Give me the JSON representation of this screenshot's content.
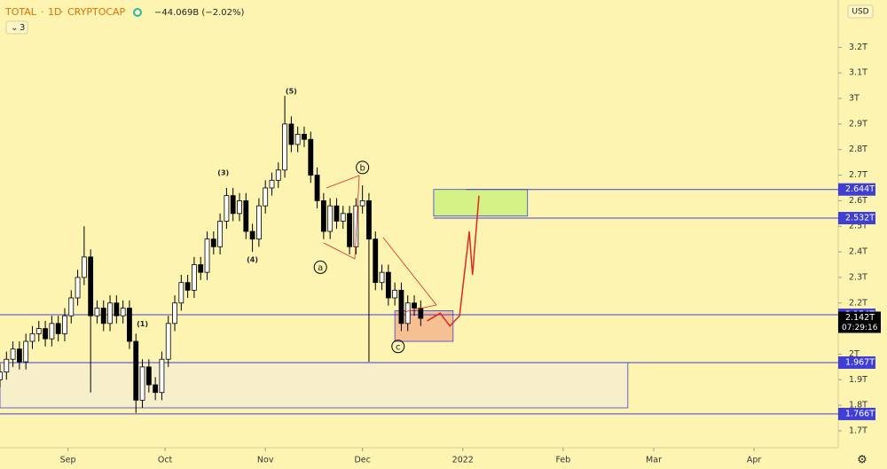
{
  "header": {
    "symbol": "TOTAL",
    "interval": "1D",
    "exchange": "CRYPTOCAP",
    "change": "−44.069B (−2.02%)",
    "indicator_count": "3",
    "currency": "USD"
  },
  "chart_data": {
    "type": "candlestick",
    "x": [
      0,
      2,
      4,
      6,
      8,
      10,
      12,
      14,
      16,
      18,
      20,
      22,
      24,
      26,
      28,
      30,
      32,
      34,
      36,
      38,
      40,
      42,
      44,
      46,
      48,
      50,
      52,
      54,
      56,
      58,
      60,
      62,
      64,
      66,
      68,
      70,
      72,
      74,
      76,
      78,
      80,
      82,
      84,
      86,
      88,
      90,
      92,
      94,
      96,
      98,
      100,
      102,
      104,
      106,
      108,
      110,
      112,
      114,
      116,
      118,
      120,
      122,
      124,
      126,
      128,
      130
    ],
    "open": [
      1.9,
      1.93,
      1.98,
      2.02,
      1.97,
      2.05,
      2.08,
      2.1,
      2.06,
      2.12,
      2.08,
      2.15,
      2.22,
      2.3,
      2.38,
      2.15,
      2.18,
      2.12,
      2.2,
      2.15,
      2.18,
      2.05,
      1.82,
      1.95,
      1.88,
      1.85,
      1.98,
      2.12,
      2.2,
      2.28,
      2.25,
      2.35,
      2.32,
      2.45,
      2.42,
      2.52,
      2.62,
      2.55,
      2.6,
      2.48,
      2.45,
      2.58,
      2.65,
      2.68,
      2.72,
      2.9,
      2.82,
      2.86,
      2.84,
      2.7,
      2.6,
      2.48,
      2.58,
      2.52,
      2.55,
      2.42,
      2.58,
      2.6,
      2.45,
      2.28,
      2.32,
      2.22,
      2.25,
      2.12,
      2.2,
      2.18
    ],
    "high": [
      1.96,
      2.01,
      2.05,
      2.05,
      2.08,
      2.11,
      2.13,
      2.13,
      2.15,
      2.15,
      2.18,
      2.25,
      2.33,
      2.5,
      2.41,
      2.21,
      2.21,
      2.23,
      2.23,
      2.21,
      2.21,
      2.08,
      1.98,
      1.98,
      1.91,
      2.01,
      2.15,
      2.23,
      2.31,
      2.31,
      2.38,
      2.38,
      2.48,
      2.48,
      2.55,
      2.65,
      2.65,
      2.63,
      2.63,
      2.51,
      2.61,
      2.68,
      2.71,
      2.75,
      3.01,
      2.93,
      2.89,
      2.89,
      2.87,
      2.73,
      2.63,
      2.61,
      2.61,
      2.58,
      2.58,
      2.61,
      2.66,
      2.63,
      2.48,
      2.35,
      2.35,
      2.28,
      2.28,
      2.23,
      2.23,
      2.21
    ],
    "low": [
      1.87,
      1.9,
      1.95,
      1.94,
      1.94,
      2.02,
      2.05,
      2.03,
      2.03,
      2.05,
      2.05,
      2.12,
      2.19,
      2.27,
      1.85,
      2.12,
      2.09,
      2.09,
      2.12,
      2.12,
      2.02,
      1.77,
      1.79,
      1.85,
      1.82,
      1.82,
      1.95,
      2.09,
      2.17,
      2.22,
      2.22,
      2.29,
      2.29,
      2.39,
      2.39,
      2.49,
      2.52,
      2.52,
      2.45,
      2.4,
      2.42,
      2.55,
      2.62,
      2.65,
      2.69,
      2.79,
      2.79,
      2.81,
      2.67,
      2.57,
      2.45,
      2.45,
      2.49,
      2.49,
      2.39,
      2.39,
      2.55,
      1.97,
      2.25,
      2.25,
      2.19,
      2.19,
      2.09,
      2.09,
      2.15,
      2.11
    ],
    "close": [
      1.93,
      1.98,
      2.02,
      1.97,
      2.05,
      2.08,
      2.1,
      2.06,
      2.12,
      2.08,
      2.15,
      2.22,
      2.3,
      2.38,
      2.15,
      2.18,
      2.12,
      2.2,
      2.15,
      2.18,
      2.05,
      1.82,
      1.95,
      1.88,
      1.85,
      1.98,
      2.12,
      2.2,
      2.28,
      2.25,
      2.35,
      2.32,
      2.45,
      2.42,
      2.52,
      2.62,
      2.55,
      2.6,
      2.48,
      2.45,
      2.58,
      2.65,
      2.68,
      2.72,
      2.9,
      2.82,
      2.86,
      2.84,
      2.7,
      2.6,
      2.48,
      2.58,
      2.52,
      2.55,
      2.42,
      2.58,
      2.6,
      2.45,
      2.28,
      2.32,
      2.22,
      2.25,
      2.12,
      2.2,
      2.18,
      2.14
    ],
    "up_color": "#ffffff",
    "down_color": "#000000",
    "xlim": [
      0,
      259
    ],
    "ylim": [
      1.634,
      3.385
    ],
    "xticks": [
      {
        "value": 21,
        "label": "Sep"
      },
      {
        "value": 51,
        "label": "Oct"
      },
      {
        "value": 82,
        "label": "Nov"
      },
      {
        "value": 112,
        "label": "Dec"
      },
      {
        "value": 143,
        "label": "2022"
      },
      {
        "value": 174,
        "label": "Feb"
      },
      {
        "value": 202,
        "label": "Mar"
      },
      {
        "value": 233,
        "label": "Apr"
      }
    ],
    "yticks": [
      {
        "value": 1.7,
        "label": "1.7T"
      },
      {
        "value": 1.8,
        "label": "1.8T"
      },
      {
        "value": 1.9,
        "label": "1.9T"
      },
      {
        "value": 2.0,
        "label": "2T"
      },
      {
        "value": 2.1,
        "label": "2.1T"
      },
      {
        "value": 2.2,
        "label": "2.2T"
      },
      {
        "value": 2.3,
        "label": "2.3T"
      },
      {
        "value": 2.4,
        "label": "2.4T"
      },
      {
        "value": 2.5,
        "label": "2.5T"
      },
      {
        "value": 2.6,
        "label": "2.6T"
      },
      {
        "value": 2.7,
        "label": "2.7T"
      },
      {
        "value": 2.8,
        "label": "2.8T"
      },
      {
        "value": 2.9,
        "label": "2.9T"
      },
      {
        "value": 3.0,
        "label": "3T"
      },
      {
        "value": 3.1,
        "label": "3.1T"
      },
      {
        "value": 3.2,
        "label": "3.2T"
      }
    ],
    "levels": [
      {
        "value": 2.644,
        "label": "2.644T",
        "start": 144
      },
      {
        "value": 2.532,
        "label": "2.532T",
        "start": 134
      },
      {
        "value": 2.154,
        "label": "2.154T",
        "start": 0
      },
      {
        "value": 1.967,
        "label": "1.967T",
        "start": 0
      },
      {
        "value": 1.766,
        "label": "1.766T",
        "start": 0
      }
    ],
    "level_color": "#3f3fd6",
    "last_price": {
      "value": 2.142,
      "label": "2.142T",
      "countdown": "07:29:16"
    },
    "zones": [
      {
        "x": [
          134,
          163
        ],
        "y": [
          2.54,
          2.644
        ],
        "color": "#c9f07a"
      },
      {
        "x": [
          122,
          140
        ],
        "y": [
          2.05,
          2.17
        ],
        "color": "#f2b48a"
      },
      {
        "x": [
          0,
          194
        ],
        "y": [
          1.79,
          1.967
        ],
        "color": "#f5ecd0"
      }
    ],
    "projection": {
      "x": [
        132,
        136,
        139,
        142,
        145,
        146,
        148
      ],
      "y": [
        2.13,
        2.16,
        2.11,
        2.15,
        2.48,
        2.31,
        2.62
      ],
      "color": "#e0281e"
    },
    "wave_labels": [
      {
        "text": "(1)",
        "x": 44,
        "y": 2.12
      },
      {
        "text": "(3)",
        "x": 69,
        "y": 2.71
      },
      {
        "text": "(4)",
        "x": 78,
        "y": 2.37
      },
      {
        "text": "(5)",
        "x": 90,
        "y": 3.03
      },
      {
        "text": "a",
        "x": 99,
        "y": 2.34,
        "circled": true
      },
      {
        "text": "b",
        "x": 112,
        "y": 2.73,
        "circled": true
      },
      {
        "text": "c",
        "x": 123,
        "y": 2.03,
        "circled": true
      }
    ]
  }
}
